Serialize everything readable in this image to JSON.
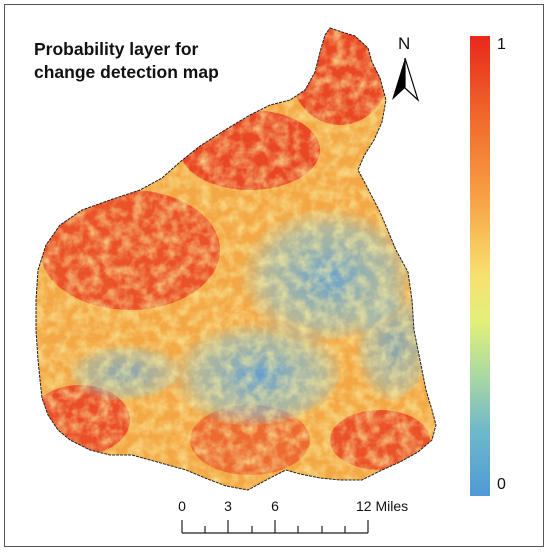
{
  "map": {
    "title_line1": "Probability layer for",
    "title_line2": "change detection map",
    "legend": {
      "max_label": "1",
      "min_label": "0",
      "colors": [
        "#e8281c",
        "#f7a446",
        "#f8e070",
        "#a9d8a0",
        "#4f9ad6"
      ]
    },
    "north_arrow": {
      "label": "N",
      "icon": "north-arrow-icon"
    },
    "scale_bar": {
      "ticks": [
        "0",
        "3",
        "6",
        "12 Miles"
      ]
    }
  }
}
